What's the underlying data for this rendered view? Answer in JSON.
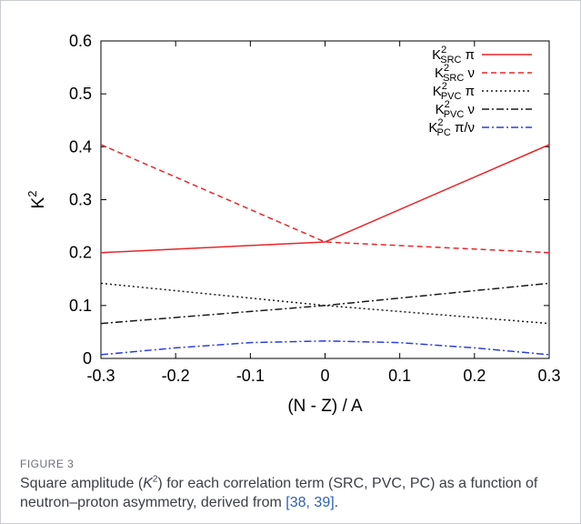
{
  "chart_data": {
    "type": "line",
    "xlabel": "(N - Z) / A",
    "ylabel": "K",
    "ylabel_sup": "2",
    "xlim": [
      -0.3,
      0.3
    ],
    "ylim": [
      0,
      0.6
    ],
    "xticks": [
      "-0.3",
      "-0.2",
      "-0.1",
      "0",
      "0.1",
      "0.2",
      "0.3"
    ],
    "yticks": [
      "0",
      "0.1",
      "0.2",
      "0.3",
      "0.4",
      "0.5",
      "0.6"
    ],
    "grid": false,
    "legend_position": "top-right",
    "series": [
      {
        "name": "K²SRC π",
        "base": "K",
        "sup": "2",
        "sub": "SRC",
        "suffix": " π",
        "color": "#e8262a",
        "dash": "",
        "x": [
          -0.3,
          0.0,
          0.3
        ],
        "y": [
          0.2,
          0.22,
          0.404
        ]
      },
      {
        "name": "K²SRC ν",
        "base": "K",
        "sup": "2",
        "sub": "SRC",
        "suffix": " ν",
        "color": "#e8262a",
        "dash": "6,4",
        "x": [
          -0.3,
          0.0,
          0.3
        ],
        "y": [
          0.404,
          0.22,
          0.2
        ]
      },
      {
        "name": "K²PVC π",
        "base": "K",
        "sup": "2",
        "sub": "PVC",
        "suffix": " π",
        "color": "#1a1a1a",
        "dash": "2,3",
        "x": [
          -0.3,
          0.0,
          0.3
        ],
        "y": [
          0.142,
          0.1,
          0.066
        ]
      },
      {
        "name": "K²PVC ν",
        "base": "K",
        "sup": "2",
        "sub": "PVC",
        "suffix": " ν",
        "color": "#1a1a1a",
        "dash": "8,3,2,3",
        "x": [
          -0.3,
          0.0,
          0.3
        ],
        "y": [
          0.066,
          0.1,
          0.142
        ]
      },
      {
        "name": "K²PC π/ν",
        "base": "K",
        "sup": "2",
        "sub": "PC",
        "suffix": " π/ν",
        "color": "#2b3fe0",
        "dash": "8,3,2,3",
        "x": [
          -0.3,
          -0.2,
          -0.1,
          0.0,
          0.1,
          0.2,
          0.3
        ],
        "y": [
          0.007,
          0.02,
          0.03,
          0.033,
          0.03,
          0.02,
          0.007
        ]
      }
    ]
  },
  "caption": {
    "label": "FIGURE 3",
    "text_before": "Square amplitude (",
    "k": "K",
    "k_sup": "2",
    "text_mid": ") for each correlation term (SRC, PVC, PC) as a function of neutron–proton asymmetry, derived from ",
    "ref": "[38, 39]",
    "text_after": "."
  }
}
